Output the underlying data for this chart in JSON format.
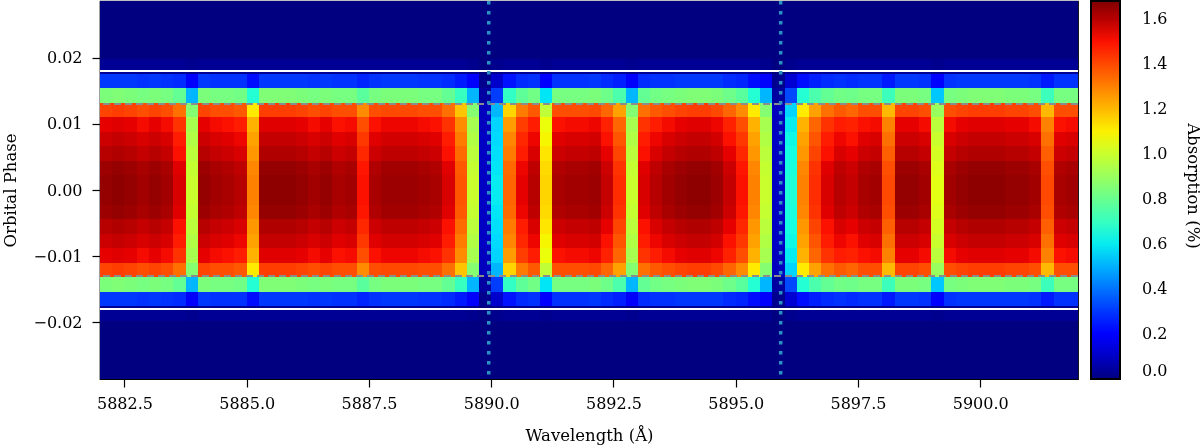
{
  "chart_data": {
    "type": "heatmap",
    "xlabel": "Wavelength (Å)",
    "ylabel": "Orbital Phase",
    "clabel": "Absorption (%)",
    "xlim": [
      5882,
      5902
    ],
    "ylim": [
      -0.0286,
      0.0286
    ],
    "clim": [
      0,
      1.68
    ],
    "xticks": [
      {
        "value": 5882.5,
        "label": "5882.5"
      },
      {
        "value": 5885,
        "label": "5885.0"
      },
      {
        "value": 5887.5,
        "label": "5887.5"
      },
      {
        "value": 5890,
        "label": "5890.0"
      },
      {
        "value": 5892.5,
        "label": "5892.5"
      },
      {
        "value": 5895,
        "label": "5895.0"
      },
      {
        "value": 5897.5,
        "label": "5897.5"
      },
      {
        "value": 5900,
        "label": "5900.0"
      }
    ],
    "yticks": [
      {
        "value": -0.02,
        "label": "−0.02"
      },
      {
        "value": -0.01,
        "label": "−0.01"
      },
      {
        "value": 0,
        "label": "0.00"
      },
      {
        "value": 0.01,
        "label": "0.01"
      },
      {
        "value": 0.02,
        "label": "0.02"
      }
    ],
    "cticks": [
      {
        "value": 0,
        "label": "0.0"
      },
      {
        "value": 0.2,
        "label": "0.2"
      },
      {
        "value": 0.4,
        "label": "0.4"
      },
      {
        "value": 0.6,
        "label": "0.6"
      },
      {
        "value": 0.8,
        "label": "0.8"
      },
      {
        "value": 1.0,
        "label": "1.0"
      },
      {
        "value": 1.2,
        "label": "1.2"
      },
      {
        "value": 1.4,
        "label": "1.4"
      },
      {
        "value": 1.6,
        "label": "1.6"
      }
    ],
    "ref_lines": [
      {
        "axis": "y",
        "value": 0.018,
        "color": "#ffffff",
        "line_style": "solid"
      },
      {
        "axis": "y",
        "value": -0.018,
        "color": "#ffffff",
        "line_style": "solid"
      },
      {
        "axis": "y",
        "value": 0.013,
        "color": "#8c8c8c",
        "line_style": "dashed"
      },
      {
        "axis": "y",
        "value": -0.013,
        "color": "#8c8c8c",
        "line_style": "dashed"
      },
      {
        "axis": "x",
        "value": 5889.95,
        "color": "#2a91c4",
        "line_style": "dotted"
      },
      {
        "axis": "x",
        "value": 5895.92,
        "color": "#2a91c4",
        "line_style": "dotted"
      }
    ],
    "x": [
      5882.125,
      5882.375,
      5882.625,
      5882.875,
      5883.125,
      5883.375,
      5883.625,
      5883.875,
      5884.125,
      5884.375,
      5884.625,
      5884.875,
      5885.125,
      5885.375,
      5885.625,
      5885.875,
      5886.125,
      5886.375,
      5886.625,
      5886.875,
      5887.125,
      5887.375,
      5887.625,
      5887.875,
      5888.125,
      5888.375,
      5888.625,
      5888.875,
      5889.125,
      5889.375,
      5889.625,
      5889.875,
      5890.125,
      5890.375,
      5890.625,
      5890.875,
      5891.125,
      5891.375,
      5891.625,
      5891.875,
      5892.125,
      5892.375,
      5892.625,
      5892.875,
      5893.125,
      5893.375,
      5893.625,
      5893.875,
      5894.125,
      5894.375,
      5894.625,
      5894.875,
      5895.125,
      5895.375,
      5895.625,
      5895.875,
      5896.125,
      5896.375,
      5896.625,
      5896.875,
      5897.125,
      5897.375,
      5897.625,
      5897.875,
      5898.125,
      5898.375,
      5898.625,
      5898.875,
      5899.125,
      5899.375,
      5899.625,
      5899.875,
      5900.125,
      5900.375,
      5900.625,
      5900.875,
      5901.125,
      5901.375,
      5901.625,
      5901.875
    ],
    "y": [
      0.0275,
      0.0253,
      0.0231,
      0.0209,
      0.0187,
      0.0165,
      0.0143,
      0.0121,
      0.0099,
      0.0077,
      0.0055,
      0.0033,
      0.0011,
      -0.0011,
      -0.0033,
      -0.0055,
      -0.0077,
      -0.0099,
      -0.0121,
      -0.0143,
      -0.0165,
      -0.0187,
      -0.0209,
      -0.0231,
      -0.0253,
      -0.0275
    ],
    "cells": [
      [
        0,
        0,
        0,
        0,
        0,
        0,
        0,
        0,
        0,
        0,
        0,
        0,
        0,
        0,
        0,
        0,
        0,
        0,
        0,
        0,
        0,
        0,
        0,
        0,
        0,
        0,
        0,
        0,
        0,
        0,
        0,
        0,
        0,
        0,
        0,
        0,
        0,
        0,
        0,
        0,
        0,
        0,
        0,
        0,
        0,
        0,
        0,
        0,
        0,
        0,
        0,
        0,
        0,
        0,
        0,
        0,
        0,
        0,
        0,
        0,
        0,
        0,
        0,
        0,
        0,
        0,
        0,
        0,
        0,
        0,
        0,
        0,
        0,
        0,
        0,
        0,
        0,
        0,
        0,
        0
      ],
      [
        0,
        0,
        0,
        0,
        0,
        0,
        0,
        0,
        0,
        0,
        0,
        0,
        0,
        0,
        0,
        0,
        0,
        0,
        0,
        0,
        0,
        0,
        0,
        0,
        0,
        0,
        0,
        0,
        0,
        0,
        0,
        0,
        0,
        0,
        0,
        0,
        0,
        0,
        0,
        0,
        0,
        0,
        0,
        0,
        0,
        0,
        0,
        0,
        0,
        0,
        0,
        0,
        0,
        0,
        0,
        0,
        0,
        0,
        0,
        0,
        0,
        0,
        0,
        0,
        0,
        0,
        0,
        0,
        0,
        0,
        0,
        0,
        0,
        0,
        0,
        0,
        0,
        0,
        0,
        0
      ],
      [
        0,
        0,
        0,
        0,
        0,
        0,
        0,
        0,
        0,
        0,
        0,
        0,
        0,
        0,
        0,
        0,
        0,
        0,
        0,
        0,
        0,
        0,
        0,
        0,
        0,
        0,
        0,
        0,
        0,
        0,
        0,
        0,
        0,
        0,
        0,
        0,
        0,
        0,
        0,
        0,
        0,
        0,
        0,
        0,
        0,
        0,
        0,
        0,
        0,
        0,
        0,
        0,
        0,
        0,
        0,
        0,
        0,
        0,
        0,
        0,
        0,
        0,
        0,
        0,
        0,
        0,
        0,
        0,
        0,
        0,
        0,
        0,
        0,
        0,
        0,
        0,
        0,
        0,
        0,
        0
      ],
      [
        0,
        0,
        0,
        0,
        0,
        0,
        0,
        0,
        0,
        0,
        0,
        0,
        0,
        0,
        0,
        0,
        0,
        0,
        0,
        0,
        0,
        0,
        0,
        0,
        0,
        0,
        0,
        0,
        0,
        0,
        0,
        0,
        0,
        0,
        0,
        0,
        0,
        0,
        0,
        0,
        0,
        0,
        0,
        0,
        0,
        0,
        0,
        0,
        0,
        0,
        0,
        0,
        0,
        0,
        0,
        0,
        0,
        0,
        0,
        0,
        0,
        0,
        0,
        0,
        0,
        0,
        0,
        0,
        0,
        0,
        0,
        0,
        0,
        0,
        0,
        0,
        0,
        0,
        0,
        0
      ],
      [
        0.03,
        0.03,
        0.03,
        0.03,
        0.03,
        0.03,
        0.03,
        0.02,
        0.03,
        0.03,
        0.03,
        0.03,
        0.03,
        0.03,
        0.03,
        0.03,
        0.03,
        0.03,
        0.03,
        0.03,
        0.03,
        0.03,
        0.03,
        0.03,
        0.03,
        0.03,
        0.03,
        0.03,
        0.03,
        0.03,
        0.02,
        0,
        0.02,
        0.03,
        0.03,
        0.03,
        0.02,
        0.03,
        0.03,
        0.03,
        0.03,
        0.03,
        0.03,
        0.02,
        0.03,
        0.03,
        0.03,
        0.03,
        0.03,
        0.03,
        0.03,
        0.03,
        0.03,
        0.03,
        0.02,
        0,
        0.02,
        0.03,
        0.03,
        0.03,
        0.03,
        0.03,
        0.03,
        0.03,
        0.03,
        0.03,
        0.03,
        0.03,
        0.02,
        0.03,
        0.03,
        0.03,
        0.03,
        0.03,
        0.03,
        0.03,
        0.03,
        0.03,
        0.03,
        0.03
      ],
      [
        0.3,
        0.3,
        0.3,
        0.29,
        0.3,
        0.29,
        0.28,
        0.18,
        0.3,
        0.29,
        0.29,
        0.29,
        0.23,
        0.3,
        0.3,
        0.3,
        0.3,
        0.29,
        0.3,
        0.29,
        0.29,
        0.27,
        0.29,
        0.3,
        0.3,
        0.3,
        0.29,
        0.29,
        0.28,
        0.25,
        0.18,
        0.02,
        0.11,
        0.24,
        0.28,
        0.29,
        0.21,
        0.29,
        0.29,
        0.29,
        0.3,
        0.28,
        0.26,
        0.18,
        0.28,
        0.29,
        0.29,
        0.3,
        0.3,
        0.3,
        0.3,
        0.28,
        0.27,
        0.23,
        0.18,
        0.02,
        0.12,
        0.23,
        0.26,
        0.28,
        0.29,
        0.28,
        0.29,
        0.29,
        0.25,
        0.3,
        0.3,
        0.29,
        0.19,
        0.29,
        0.3,
        0.3,
        0.3,
        0.3,
        0.3,
        0.3,
        0.29,
        0.25,
        0.29,
        0.29
      ],
      [
        0.84,
        0.85,
        0.84,
        0.83,
        0.84,
        0.83,
        0.79,
        0.51,
        0.84,
        0.83,
        0.83,
        0.82,
        0.66,
        0.85,
        0.85,
        0.85,
        0.84,
        0.83,
        0.84,
        0.83,
        0.83,
        0.77,
        0.83,
        0.84,
        0.84,
        0.84,
        0.83,
        0.83,
        0.79,
        0.7,
        0.51,
        0.05,
        0.31,
        0.69,
        0.78,
        0.82,
        0.59,
        0.83,
        0.83,
        0.83,
        0.84,
        0.81,
        0.74,
        0.51,
        0.79,
        0.82,
        0.83,
        0.84,
        0.85,
        0.85,
        0.84,
        0.81,
        0.77,
        0.66,
        0.51,
        0.05,
        0.33,
        0.66,
        0.74,
        0.79,
        0.82,
        0.81,
        0.83,
        0.83,
        0.71,
        0.84,
        0.84,
        0.83,
        0.54,
        0.83,
        0.84,
        0.85,
        0.85,
        0.85,
        0.84,
        0.84,
        0.83,
        0.71,
        0.83,
        0.83
      ],
      [
        1.41,
        1.42,
        1.41,
        1.39,
        1.41,
        1.39,
        1.33,
        0.86,
        1.41,
        1.39,
        1.39,
        1.37,
        1.11,
        1.42,
        1.42,
        1.42,
        1.41,
        1.39,
        1.41,
        1.39,
        1.39,
        1.28,
        1.39,
        1.4,
        1.4,
        1.4,
        1.39,
        1.39,
        1.33,
        1.18,
        0.86,
        0.09,
        0.51,
        1.15,
        1.31,
        1.37,
        0.98,
        1.39,
        1.39,
        1.39,
        1.4,
        1.35,
        1.24,
        0.86,
        1.33,
        1.37,
        1.39,
        1.41,
        1.42,
        1.42,
        1.4,
        1.35,
        1.28,
        1.11,
        0.86,
        0.09,
        0.56,
        1.11,
        1.24,
        1.33,
        1.37,
        1.35,
        1.39,
        1.39,
        1.2,
        1.41,
        1.41,
        1.39,
        0.9,
        1.39,
        1.41,
        1.42,
        1.42,
        1.42,
        1.41,
        1.41,
        1.39,
        1.2,
        1.39,
        1.39
      ],
      [
        1.53,
        1.54,
        1.53,
        1.51,
        1.53,
        1.51,
        1.44,
        0.93,
        1.53,
        1.51,
        1.5,
        1.48,
        1.21,
        1.54,
        1.54,
        1.54,
        1.53,
        1.51,
        1.53,
        1.5,
        1.51,
        1.39,
        1.5,
        1.52,
        1.52,
        1.52,
        1.51,
        1.5,
        1.44,
        1.28,
        0.93,
        0.09,
        0.56,
        1.25,
        1.42,
        1.48,
        1.07,
        1.5,
        1.51,
        1.51,
        1.52,
        1.47,
        1.35,
        0.93,
        1.44,
        1.48,
        1.51,
        1.53,
        1.54,
        1.54,
        1.52,
        1.47,
        1.39,
        1.21,
        0.93,
        0.09,
        0.6,
        1.21,
        1.35,
        1.44,
        1.48,
        1.47,
        1.5,
        1.51,
        1.3,
        1.53,
        1.53,
        1.51,
        0.97,
        1.51,
        1.53,
        1.54,
        1.54,
        1.54,
        1.53,
        1.53,
        1.51,
        1.3,
        1.5,
        1.51
      ],
      [
        1.57,
        1.58,
        1.57,
        1.55,
        1.57,
        1.55,
        1.48,
        0.95,
        1.57,
        1.55,
        1.54,
        1.52,
        1.24,
        1.58,
        1.58,
        1.58,
        1.57,
        1.55,
        1.57,
        1.54,
        1.55,
        1.43,
        1.54,
        1.56,
        1.56,
        1.56,
        1.55,
        1.54,
        1.48,
        1.31,
        0.95,
        0.1,
        0.57,
        1.29,
        1.46,
        1.52,
        1.09,
        1.54,
        1.55,
        1.55,
        1.56,
        1.5,
        1.38,
        0.95,
        1.48,
        1.52,
        1.55,
        1.57,
        1.58,
        1.58,
        1.56,
        1.5,
        1.43,
        1.24,
        0.95,
        0.1,
        0.62,
        1.24,
        1.38,
        1.48,
        1.52,
        1.5,
        1.54,
        1.55,
        1.33,
        1.57,
        1.57,
        1.55,
        1.0,
        1.55,
        1.57,
        1.58,
        1.58,
        1.58,
        1.57,
        1.57,
        1.55,
        1.33,
        1.54,
        1.55
      ],
      [
        1.6,
        1.61,
        1.6,
        1.58,
        1.6,
        1.58,
        1.5,
        0.97,
        1.6,
        1.58,
        1.57,
        1.55,
        1.26,
        1.61,
        1.61,
        1.61,
        1.6,
        1.58,
        1.6,
        1.57,
        1.58,
        1.46,
        1.57,
        1.59,
        1.59,
        1.59,
        1.58,
        1.57,
        1.5,
        1.34,
        0.97,
        0.1,
        0.58,
        1.31,
        1.48,
        1.55,
        1.12,
        1.57,
        1.58,
        1.58,
        1.59,
        1.53,
        1.41,
        0.97,
        1.5,
        1.55,
        1.58,
        1.6,
        1.61,
        1.61,
        1.59,
        1.53,
        1.46,
        1.26,
        0.97,
        0.1,
        0.63,
        1.26,
        1.41,
        1.5,
        1.55,
        1.53,
        1.57,
        1.58,
        1.36,
        1.6,
        1.6,
        1.58,
        1.02,
        1.58,
        1.6,
        1.61,
        1.61,
        1.61,
        1.6,
        1.6,
        1.58,
        1.36,
        1.57,
        1.58
      ],
      [
        1.64,
        1.65,
        1.64,
        1.62,
        1.64,
        1.62,
        1.54,
        0.99,
        1.64,
        1.62,
        1.61,
        1.59,
        1.29,
        1.65,
        1.65,
        1.65,
        1.64,
        1.62,
        1.64,
        1.61,
        1.62,
        1.49,
        1.61,
        1.63,
        1.63,
        1.63,
        1.62,
        1.61,
        1.54,
        1.37,
        0.99,
        0.1,
        0.59,
        1.34,
        1.52,
        1.59,
        1.14,
        1.61,
        1.62,
        1.62,
        1.63,
        1.57,
        1.44,
        0.99,
        1.54,
        1.59,
        1.62,
        1.64,
        1.65,
        1.65,
        1.63,
        1.57,
        1.49,
        1.29,
        0.99,
        0.1,
        0.64,
        1.29,
        1.44,
        1.54,
        1.59,
        1.57,
        1.61,
        1.62,
        1.39,
        1.64,
        1.64,
        1.62,
        1.04,
        1.62,
        1.64,
        1.65,
        1.65,
        1.65,
        1.64,
        1.64,
        1.62,
        1.39,
        1.61,
        1.62
      ],
      [
        1.65,
        1.66,
        1.65,
        1.63,
        1.65,
        1.63,
        1.55,
        1.0,
        1.65,
        1.63,
        1.62,
        1.6,
        1.3,
        1.66,
        1.66,
        1.66,
        1.65,
        1.63,
        1.65,
        1.62,
        1.63,
        1.5,
        1.62,
        1.64,
        1.64,
        1.64,
        1.63,
        1.62,
        1.55,
        1.38,
        1.0,
        0.1,
        0.6,
        1.35,
        1.53,
        1.6,
        1.15,
        1.62,
        1.63,
        1.63,
        1.64,
        1.58,
        1.45,
        1.0,
        1.55,
        1.6,
        1.63,
        1.65,
        1.66,
        1.66,
        1.64,
        1.58,
        1.5,
        1.3,
        1.0,
        0.1,
        0.65,
        1.3,
        1.45,
        1.55,
        1.6,
        1.58,
        1.62,
        1.63,
        1.4,
        1.65,
        1.65,
        1.63,
        1.05,
        1.63,
        1.65,
        1.66,
        1.66,
        1.66,
        1.65,
        1.65,
        1.63,
        1.4,
        1.62,
        1.63
      ],
      [
        1.65,
        1.66,
        1.65,
        1.63,
        1.65,
        1.63,
        1.55,
        1.0,
        1.65,
        1.63,
        1.62,
        1.6,
        1.3,
        1.66,
        1.66,
        1.66,
        1.65,
        1.63,
        1.65,
        1.62,
        1.63,
        1.5,
        1.62,
        1.64,
        1.64,
        1.64,
        1.63,
        1.62,
        1.55,
        1.38,
        1.0,
        0.1,
        0.6,
        1.35,
        1.53,
        1.6,
        1.15,
        1.62,
        1.63,
        1.63,
        1.64,
        1.58,
        1.45,
        1.0,
        1.55,
        1.6,
        1.63,
        1.65,
        1.66,
        1.66,
        1.64,
        1.58,
        1.5,
        1.3,
        1.0,
        0.1,
        0.65,
        1.3,
        1.45,
        1.55,
        1.6,
        1.58,
        1.62,
        1.63,
        1.4,
        1.65,
        1.65,
        1.63,
        1.05,
        1.63,
        1.65,
        1.66,
        1.66,
        1.66,
        1.65,
        1.65,
        1.63,
        1.4,
        1.62,
        1.63
      ],
      [
        1.64,
        1.65,
        1.64,
        1.62,
        1.64,
        1.62,
        1.54,
        0.99,
        1.64,
        1.62,
        1.61,
        1.59,
        1.29,
        1.65,
        1.65,
        1.65,
        1.64,
        1.62,
        1.64,
        1.61,
        1.62,
        1.49,
        1.61,
        1.63,
        1.63,
        1.63,
        1.62,
        1.61,
        1.54,
        1.37,
        0.99,
        0.1,
        0.59,
        1.34,
        1.52,
        1.59,
        1.14,
        1.61,
        1.62,
        1.62,
        1.63,
        1.57,
        1.44,
        0.99,
        1.54,
        1.59,
        1.62,
        1.64,
        1.65,
        1.65,
        1.63,
        1.57,
        1.49,
        1.29,
        0.99,
        0.1,
        0.64,
        1.29,
        1.44,
        1.54,
        1.59,
        1.57,
        1.61,
        1.62,
        1.39,
        1.64,
        1.64,
        1.62,
        1.04,
        1.62,
        1.64,
        1.65,
        1.65,
        1.65,
        1.64,
        1.64,
        1.62,
        1.39,
        1.61,
        1.62
      ],
      [
        1.6,
        1.61,
        1.6,
        1.58,
        1.6,
        1.58,
        1.5,
        0.97,
        1.6,
        1.58,
        1.57,
        1.55,
        1.26,
        1.61,
        1.61,
        1.61,
        1.6,
        1.58,
        1.6,
        1.57,
        1.58,
        1.46,
        1.57,
        1.59,
        1.59,
        1.59,
        1.58,
        1.57,
        1.5,
        1.34,
        0.97,
        0.1,
        0.58,
        1.31,
        1.48,
        1.55,
        1.12,
        1.57,
        1.58,
        1.58,
        1.59,
        1.53,
        1.41,
        0.97,
        1.5,
        1.55,
        1.58,
        1.6,
        1.61,
        1.61,
        1.59,
        1.53,
        1.46,
        1.26,
        0.97,
        0.1,
        0.63,
        1.26,
        1.41,
        1.5,
        1.55,
        1.53,
        1.57,
        1.58,
        1.36,
        1.6,
        1.6,
        1.58,
        1.02,
        1.58,
        1.6,
        1.61,
        1.61,
        1.61,
        1.6,
        1.6,
        1.58,
        1.36,
        1.57,
        1.58
      ],
      [
        1.57,
        1.58,
        1.57,
        1.55,
        1.57,
        1.55,
        1.48,
        0.95,
        1.57,
        1.55,
        1.54,
        1.52,
        1.24,
        1.58,
        1.58,
        1.58,
        1.57,
        1.55,
        1.57,
        1.54,
        1.55,
        1.43,
        1.54,
        1.56,
        1.56,
        1.56,
        1.55,
        1.54,
        1.48,
        1.31,
        0.95,
        0.1,
        0.57,
        1.29,
        1.46,
        1.52,
        1.09,
        1.54,
        1.55,
        1.55,
        1.56,
        1.5,
        1.38,
        0.95,
        1.48,
        1.52,
        1.55,
        1.57,
        1.58,
        1.58,
        1.56,
        1.5,
        1.43,
        1.24,
        0.95,
        0.1,
        0.62,
        1.24,
        1.38,
        1.48,
        1.52,
        1.5,
        1.54,
        1.55,
        1.33,
        1.57,
        1.57,
        1.55,
        1.0,
        1.55,
        1.57,
        1.58,
        1.58,
        1.58,
        1.57,
        1.57,
        1.55,
        1.33,
        1.54,
        1.55
      ],
      [
        1.53,
        1.54,
        1.53,
        1.51,
        1.53,
        1.51,
        1.44,
        0.93,
        1.53,
        1.51,
        1.5,
        1.48,
        1.21,
        1.54,
        1.54,
        1.54,
        1.53,
        1.51,
        1.53,
        1.5,
        1.51,
        1.39,
        1.5,
        1.52,
        1.52,
        1.52,
        1.51,
        1.5,
        1.44,
        1.28,
        0.93,
        0.09,
        0.56,
        1.25,
        1.42,
        1.48,
        1.07,
        1.5,
        1.51,
        1.51,
        1.52,
        1.47,
        1.35,
        0.93,
        1.44,
        1.48,
        1.51,
        1.53,
        1.54,
        1.54,
        1.52,
        1.47,
        1.39,
        1.21,
        0.93,
        0.09,
        0.6,
        1.21,
        1.35,
        1.44,
        1.48,
        1.47,
        1.5,
        1.51,
        1.3,
        1.53,
        1.53,
        1.51,
        0.97,
        1.51,
        1.53,
        1.54,
        1.54,
        1.54,
        1.53,
        1.53,
        1.51,
        1.3,
        1.5,
        1.51
      ],
      [
        1.41,
        1.42,
        1.41,
        1.39,
        1.41,
        1.39,
        1.33,
        0.86,
        1.41,
        1.39,
        1.39,
        1.37,
        1.11,
        1.42,
        1.42,
        1.42,
        1.41,
        1.39,
        1.41,
        1.39,
        1.39,
        1.28,
        1.39,
        1.4,
        1.4,
        1.4,
        1.39,
        1.39,
        1.33,
        1.18,
        0.86,
        0.09,
        0.51,
        1.15,
        1.31,
        1.37,
        0.98,
        1.39,
        1.39,
        1.39,
        1.4,
        1.35,
        1.24,
        0.86,
        1.33,
        1.37,
        1.39,
        1.41,
        1.42,
        1.42,
        1.4,
        1.35,
        1.28,
        1.11,
        0.86,
        0.09,
        0.56,
        1.11,
        1.24,
        1.33,
        1.37,
        1.35,
        1.39,
        1.39,
        1.2,
        1.41,
        1.41,
        1.39,
        0.9,
        1.39,
        1.41,
        1.42,
        1.42,
        1.42,
        1.41,
        1.41,
        1.39,
        1.2,
        1.39,
        1.39
      ],
      [
        0.84,
        0.85,
        0.84,
        0.83,
        0.84,
        0.83,
        0.79,
        0.51,
        0.84,
        0.83,
        0.83,
        0.82,
        0.66,
        0.85,
        0.85,
        0.85,
        0.84,
        0.83,
        0.84,
        0.83,
        0.83,
        0.77,
        0.83,
        0.84,
        0.84,
        0.84,
        0.83,
        0.83,
        0.79,
        0.7,
        0.51,
        0.05,
        0.31,
        0.69,
        0.78,
        0.82,
        0.59,
        0.83,
        0.83,
        0.83,
        0.84,
        0.81,
        0.74,
        0.51,
        0.79,
        0.82,
        0.83,
        0.84,
        0.85,
        0.85,
        0.84,
        0.81,
        0.77,
        0.66,
        0.51,
        0.05,
        0.33,
        0.66,
        0.74,
        0.79,
        0.82,
        0.81,
        0.83,
        0.83,
        0.71,
        0.84,
        0.84,
        0.83,
        0.54,
        0.83,
        0.84,
        0.85,
        0.85,
        0.85,
        0.84,
        0.84,
        0.83,
        0.71,
        0.83,
        0.83
      ],
      [
        0.3,
        0.3,
        0.3,
        0.29,
        0.3,
        0.29,
        0.28,
        0.18,
        0.3,
        0.29,
        0.29,
        0.29,
        0.23,
        0.3,
        0.3,
        0.3,
        0.3,
        0.29,
        0.3,
        0.29,
        0.29,
        0.27,
        0.29,
        0.3,
        0.3,
        0.3,
        0.29,
        0.29,
        0.28,
        0.25,
        0.18,
        0.02,
        0.11,
        0.24,
        0.28,
        0.29,
        0.21,
        0.29,
        0.29,
        0.29,
        0.3,
        0.28,
        0.26,
        0.18,
        0.28,
        0.29,
        0.29,
        0.3,
        0.3,
        0.3,
        0.3,
        0.28,
        0.27,
        0.23,
        0.18,
        0.02,
        0.12,
        0.23,
        0.26,
        0.28,
        0.29,
        0.28,
        0.29,
        0.29,
        0.25,
        0.3,
        0.3,
        0.29,
        0.19,
        0.29,
        0.3,
        0.3,
        0.3,
        0.3,
        0.3,
        0.3,
        0.29,
        0.25,
        0.29,
        0.29
      ],
      [
        0.03,
        0.03,
        0.03,
        0.03,
        0.03,
        0.03,
        0.03,
        0.02,
        0.03,
        0.03,
        0.03,
        0.03,
        0.03,
        0.03,
        0.03,
        0.03,
        0.03,
        0.03,
        0.03,
        0.03,
        0.03,
        0.03,
        0.03,
        0.03,
        0.03,
        0.03,
        0.03,
        0.03,
        0.03,
        0.03,
        0.02,
        0,
        0.02,
        0.03,
        0.03,
        0.03,
        0.02,
        0.03,
        0.03,
        0.03,
        0.03,
        0.03,
        0.03,
        0.02,
        0.03,
        0.03,
        0.03,
        0.03,
        0.03,
        0.03,
        0.03,
        0.03,
        0.03,
        0.03,
        0.02,
        0,
        0.02,
        0.03,
        0.03,
        0.03,
        0.03,
        0.03,
        0.03,
        0.03,
        0.03,
        0.03,
        0.03,
        0.03,
        0.02,
        0.03,
        0.03,
        0.03,
        0.03,
        0.03,
        0.03,
        0.03,
        0.03,
        0.03,
        0.03,
        0.03
      ],
      [
        0,
        0,
        0,
        0,
        0,
        0,
        0,
        0,
        0,
        0,
        0,
        0,
        0,
        0,
        0,
        0,
        0,
        0,
        0,
        0,
        0,
        0,
        0,
        0,
        0,
        0,
        0,
        0,
        0,
        0,
        0,
        0,
        0,
        0,
        0,
        0,
        0,
        0,
        0,
        0,
        0,
        0,
        0,
        0,
        0,
        0,
        0,
        0,
        0,
        0,
        0,
        0,
        0,
        0,
        0,
        0,
        0,
        0,
        0,
        0,
        0,
        0,
        0,
        0,
        0,
        0,
        0,
        0,
        0,
        0,
        0,
        0,
        0,
        0,
        0,
        0,
        0,
        0,
        0,
        0
      ],
      [
        0,
        0,
        0,
        0,
        0,
        0,
        0,
        0,
        0,
        0,
        0,
        0,
        0,
        0,
        0,
        0,
        0,
        0,
        0,
        0,
        0,
        0,
        0,
        0,
        0,
        0,
        0,
        0,
        0,
        0,
        0,
        0,
        0,
        0,
        0,
        0,
        0,
        0,
        0,
        0,
        0,
        0,
        0,
        0,
        0,
        0,
        0,
        0,
        0,
        0,
        0,
        0,
        0,
        0,
        0,
        0,
        0,
        0,
        0,
        0,
        0,
        0,
        0,
        0,
        0,
        0,
        0,
        0,
        0,
        0,
        0,
        0,
        0,
        0,
        0,
        0,
        0,
        0,
        0,
        0
      ],
      [
        0,
        0,
        0,
        0,
        0,
        0,
        0,
        0,
        0,
        0,
        0,
        0,
        0,
        0,
        0,
        0,
        0,
        0,
        0,
        0,
        0,
        0,
        0,
        0,
        0,
        0,
        0,
        0,
        0,
        0,
        0,
        0,
        0,
        0,
        0,
        0,
        0,
        0,
        0,
        0,
        0,
        0,
        0,
        0,
        0,
        0,
        0,
        0,
        0,
        0,
        0,
        0,
        0,
        0,
        0,
        0,
        0,
        0,
        0,
        0,
        0,
        0,
        0,
        0,
        0,
        0,
        0,
        0,
        0,
        0,
        0,
        0,
        0,
        0,
        0,
        0,
        0,
        0,
        0,
        0
      ],
      [
        0,
        0,
        0,
        0,
        0,
        0,
        0,
        0,
        0,
        0,
        0,
        0,
        0,
        0,
        0,
        0,
        0,
        0,
        0,
        0,
        0,
        0,
        0,
        0,
        0,
        0,
        0,
        0,
        0,
        0,
        0,
        0,
        0,
        0,
        0,
        0,
        0,
        0,
        0,
        0,
        0,
        0,
        0,
        0,
        0,
        0,
        0,
        0,
        0,
        0,
        0,
        0,
        0,
        0,
        0,
        0,
        0,
        0,
        0,
        0,
        0,
        0,
        0,
        0,
        0,
        0,
        0,
        0,
        0,
        0,
        0,
        0,
        0,
        0,
        0,
        0,
        0,
        0,
        0,
        0
      ]
    ]
  }
}
